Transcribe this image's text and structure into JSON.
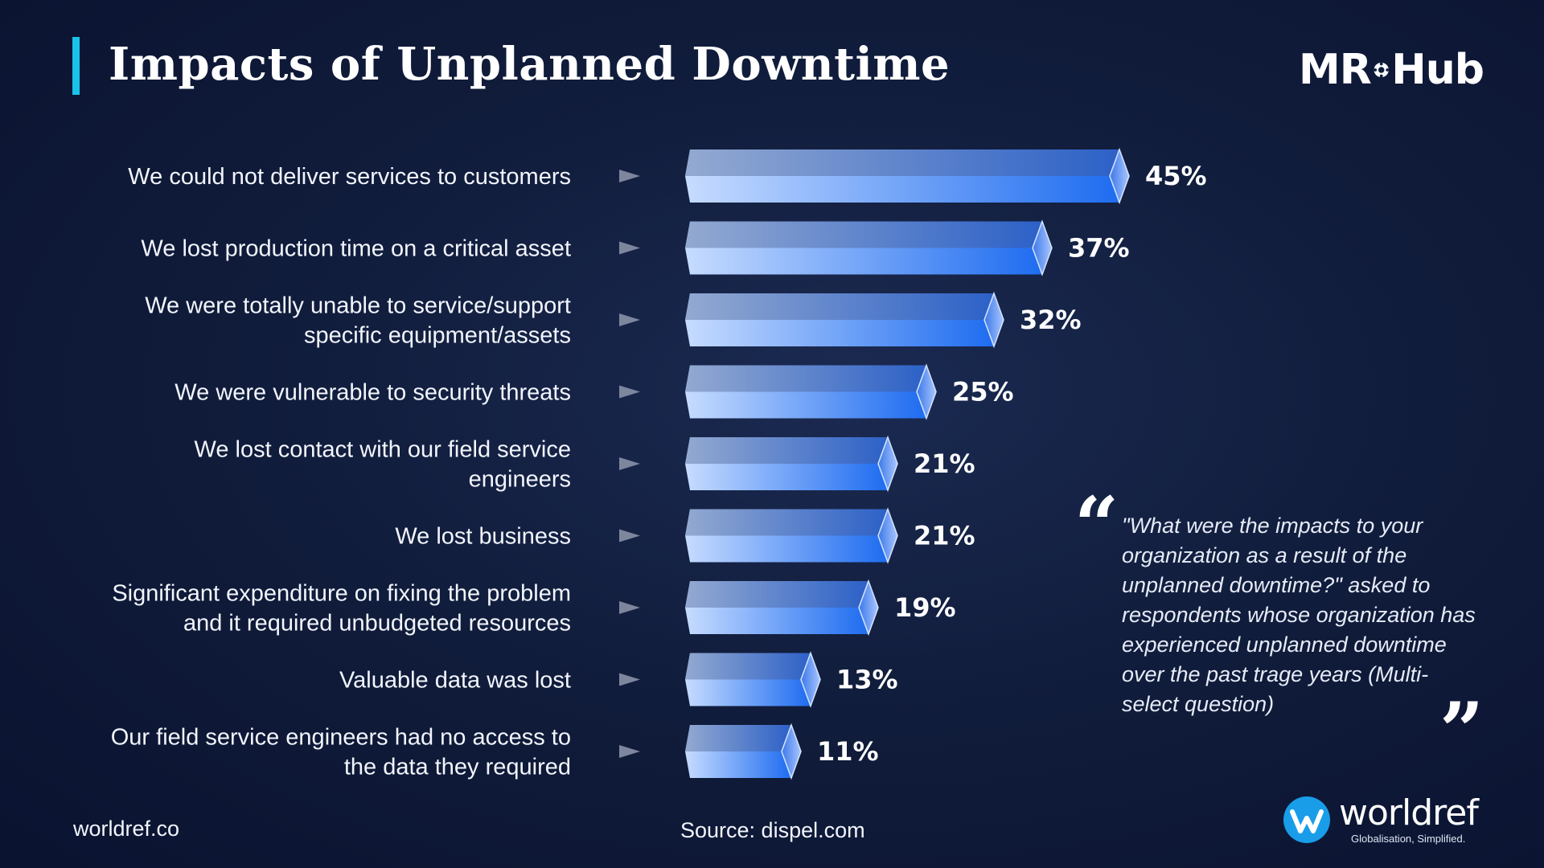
{
  "header": {
    "title": "Impacts of Unplanned Downtime",
    "brand_left": "MR",
    "brand_right": "Hub"
  },
  "chart_data": {
    "type": "bar",
    "orientation": "horizontal",
    "title": "Impacts of Unplanned Downtime",
    "categories": [
      [
        "We could not deliver services to customers"
      ],
      [
        "We lost production time on a critical asset"
      ],
      [
        "We were totally unable to service/support",
        "specific equipment/assets"
      ],
      [
        "We were vulnerable to security threats"
      ],
      [
        "We lost contact with our field service",
        "engineers"
      ],
      [
        "We lost business"
      ],
      [
        "Significant expenditure on fixing the problem",
        "and it required unbudgeted resources"
      ],
      [
        "Valuable data was lost"
      ],
      [
        "Our field service engineers had no access to",
        "the data they required"
      ]
    ],
    "values": [
      45,
      37,
      32,
      25,
      21,
      21,
      19,
      13,
      11
    ],
    "value_labels": [
      "45%",
      "37%",
      "32%",
      "25%",
      "21%",
      "21%",
      "19%",
      "13%",
      "11%"
    ],
    "unit": "%",
    "xlim": [
      0,
      45
    ],
    "colors": {
      "bar_start": "#c7dcff",
      "bar_end": "#1e6cf0",
      "bar_top": "#6f8fd0",
      "arrow": "#7d869d"
    }
  },
  "quote": {
    "open_mark": "“",
    "close_mark": "”",
    "text": "\"What were the impacts to your organization as a result of the unplanned downtime?\" asked to respondents whose organization has experienced unplanned downtime over the past trage years (Multi-select question)"
  },
  "footer": {
    "site": "worldref.co",
    "source": "Source: dispel.com",
    "logo_name": "worldref",
    "logo_tagline": "Globalisation, Simplified."
  },
  "colors": {
    "accent": "#19c3e8",
    "background": "#111d3c"
  }
}
